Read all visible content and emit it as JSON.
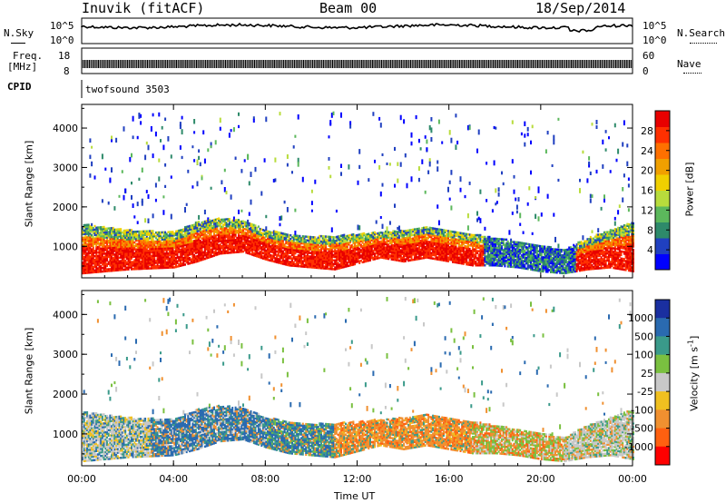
{
  "header": {
    "station": "Inuvik (fitACF)",
    "beam": "Beam 00",
    "date": "18/Sep/2014"
  },
  "aux_panels": {
    "nsky_label": "N.Sky",
    "nsky_ticks": [
      "10^5",
      "10^0"
    ],
    "nsearch_label": "N.Search",
    "nsearch_ticks": [
      "10^5",
      "10^0"
    ],
    "freq_label": "Freq.",
    "freq_unit": "[MHz]",
    "freq_ticks": [
      "18",
      "8"
    ],
    "nave_label": "Nave",
    "nave_ticks": [
      "60",
      "0"
    ],
    "cpid_label": "CPID",
    "cpid_value": "twofsound 3503"
  },
  "colors": {
    "power_scale": [
      "#0000ff",
      "#2040c0",
      "#2e8a6a",
      "#5cb85c",
      "#b8dc3c",
      "#f0d000",
      "#f0a000",
      "#ff7000",
      "#ff3000",
      "#e80000"
    ],
    "velocity_scale": [
      "#1a2fa0",
      "#2a6ab0",
      "#3a9a8a",
      "#7ac040",
      "#c8c8c8",
      "#f0c020",
      "#f09030",
      "#ff6010",
      "#ff0000"
    ]
  },
  "chart_data": [
    {
      "type": "heatmap",
      "name": "power",
      "ylabel": "Slant Range [km]",
      "yticks": [
        1000,
        2000,
        3000,
        4000
      ],
      "ylim": [
        200,
        4600
      ],
      "xlim": [
        "00:00",
        "00:00"
      ],
      "colorbar_label": "Power [dB]",
      "colorbar_ticks": [
        4,
        8,
        12,
        16,
        20,
        24,
        28
      ],
      "colorbar_range": [
        0,
        32
      ],
      "profile": [
        {
          "t": 0,
          "low": 300,
          "high": 1550
        },
        {
          "t": 2,
          "low": 400,
          "high": 1400
        },
        {
          "t": 4,
          "low": 450,
          "high": 1350
        },
        {
          "t": 5,
          "low": 600,
          "high": 1600
        },
        {
          "t": 6,
          "low": 800,
          "high": 1700
        },
        {
          "t": 7,
          "low": 850,
          "high": 1650
        },
        {
          "t": 8,
          "low": 650,
          "high": 1400
        },
        {
          "t": 9,
          "low": 500,
          "high": 1300
        },
        {
          "t": 10,
          "low": 450,
          "high": 1250
        },
        {
          "t": 11,
          "low": 400,
          "high": 1250
        },
        {
          "t": 12,
          "low": 550,
          "high": 1300
        },
        {
          "t": 13,
          "low": 700,
          "high": 1350
        },
        {
          "t": 14,
          "low": 600,
          "high": 1400
        },
        {
          "t": 15,
          "low": 700,
          "high": 1500
        },
        {
          "t": 16,
          "low": 600,
          "high": 1400
        },
        {
          "t": 17,
          "low": 500,
          "high": 1300
        },
        {
          "t": 18,
          "low": 500,
          "high": 1200
        },
        {
          "t": 19,
          "low": 450,
          "high": 1100
        },
        {
          "t": 20,
          "low": 350,
          "high": 1000
        },
        {
          "t": 21,
          "low": 300,
          "high": 900
        },
        {
          "t": 22,
          "low": 400,
          "high": 1200
        },
        {
          "t": 23,
          "low": 450,
          "high": 1400
        },
        {
          "t": 24,
          "low": 350,
          "high": 1600
        }
      ]
    },
    {
      "type": "heatmap",
      "name": "velocity",
      "ylabel": "Slant Range [km]",
      "yticks": [
        1000,
        2000,
        3000,
        4000
      ],
      "ylim": [
        200,
        4600
      ],
      "xlabel": "Time UT",
      "xticks": [
        "00:00",
        "04:00",
        "08:00",
        "12:00",
        "16:00",
        "20:00",
        "00:00"
      ],
      "colorbar_label": "Velocity [m s^-1]",
      "colorbar_ticks": [
        "1000",
        "500",
        "100",
        "25",
        "-25",
        "-100",
        "-500",
        "-1000"
      ]
    }
  ]
}
